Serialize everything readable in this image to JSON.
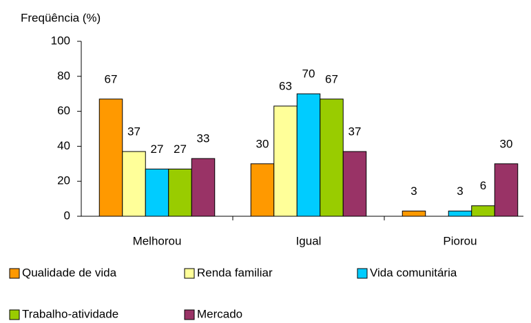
{
  "chart_data": {
    "type": "bar",
    "y_label": "Freqüência (%)",
    "categories": [
      "Melhorou",
      "Igual",
      "Piorou"
    ],
    "series": [
      {
        "name": "Qualidade de vida",
        "color": "#FF9900",
        "values": [
          67,
          30,
          3
        ]
      },
      {
        "name": "Renda familiar",
        "color": "#FFFF99",
        "values": [
          37,
          63,
          null
        ]
      },
      {
        "name": "Vida comunitária",
        "color": "#00CCFF",
        "values": [
          27,
          70,
          3
        ]
      },
      {
        "name": "Trabalho-atividade",
        "color": "#99CC00",
        "values": [
          27,
          67,
          6
        ]
      },
      {
        "name": "Mercado",
        "color": "#993366",
        "values": [
          33,
          37,
          30
        ]
      }
    ],
    "ylim": [
      0,
      100
    ],
    "yticks": [
      0,
      20,
      40,
      60,
      80,
      100
    ],
    "grid": false,
    "legend": "bottom"
  }
}
